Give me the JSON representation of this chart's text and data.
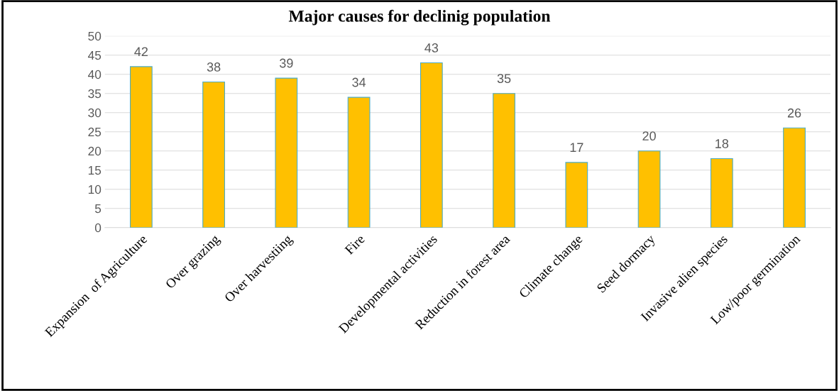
{
  "chart_data": {
    "type": "bar",
    "title": "Major causes for declinig population",
    "categories": [
      "Expansion  of Agriculture",
      "Over grazing",
      "Over harvestiing",
      "Fire",
      "Developmental activities",
      "Reduction in forest area",
      "Climate change",
      "Seed dormacy",
      "Invasive alien species",
      "Low/poor germination"
    ],
    "values": [
      42,
      38,
      39,
      34,
      43,
      35,
      17,
      20,
      18,
      26
    ],
    "color": "#ffc000",
    "ylim": [
      0,
      50
    ],
    "yticks": [
      0,
      5,
      10,
      15,
      20,
      25,
      30,
      35,
      40,
      45,
      50
    ],
    "grid": "y",
    "data_labels": true
  }
}
